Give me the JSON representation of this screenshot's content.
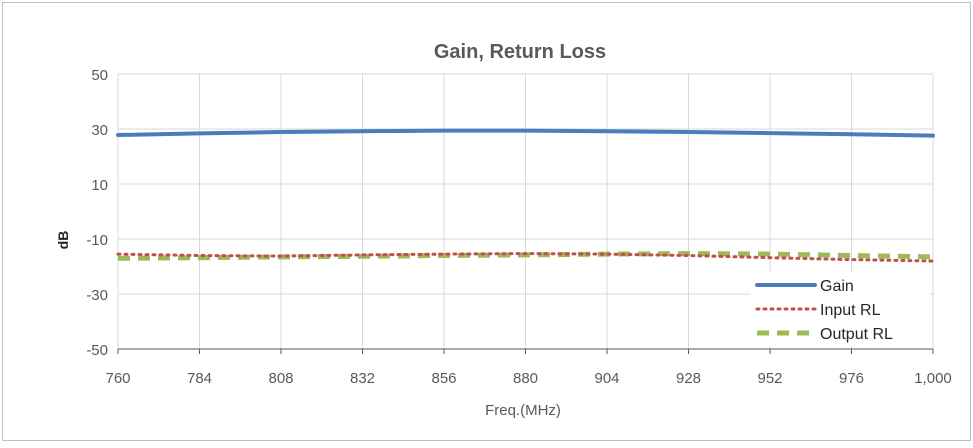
{
  "chart_data": {
    "type": "line",
    "title": "Gain, Return Loss",
    "xlabel": "Freq.(MHz)",
    "ylabel": "dB",
    "xlim": [
      760,
      1000
    ],
    "ylim": [
      -50,
      50
    ],
    "x_ticks": [
      760,
      784,
      808,
      832,
      856,
      880,
      904,
      928,
      952,
      976,
      1000
    ],
    "x_tick_labels": [
      "760",
      "784",
      "808",
      "832",
      "856",
      "880",
      "904",
      "928",
      "952",
      "976",
      "1,000"
    ],
    "y_ticks": [
      50,
      30,
      10,
      -10,
      -30,
      -50
    ],
    "y_tick_labels": [
      "50",
      "30",
      "10",
      "-10",
      "-30",
      "-50"
    ],
    "grid": true,
    "legend_position": "bottom-right",
    "x": [
      760,
      784,
      808,
      832,
      856,
      880,
      904,
      928,
      952,
      976,
      1000
    ],
    "series": [
      {
        "name": "Gain",
        "color": "#4a7ebb",
        "style": "solid",
        "values": [
          27.8,
          28.4,
          28.9,
          29.2,
          29.4,
          29.4,
          29.2,
          28.9,
          28.5,
          28.1,
          27.6
        ]
      },
      {
        "name": "Input RL",
        "color": "#c0504d",
        "style": "dotted",
        "values": [
          -15.5,
          -16.0,
          -16.2,
          -15.8,
          -15.5,
          -15.3,
          -15.5,
          -16.0,
          -16.8,
          -17.5,
          -18.0
        ]
      },
      {
        "name": "Output RL",
        "color": "#9bbb59",
        "style": "dashed",
        "values": [
          -17.0,
          -16.8,
          -16.5,
          -16.3,
          -16.0,
          -15.8,
          -15.5,
          -15.3,
          -15.5,
          -16.0,
          -16.5
        ]
      }
    ]
  }
}
